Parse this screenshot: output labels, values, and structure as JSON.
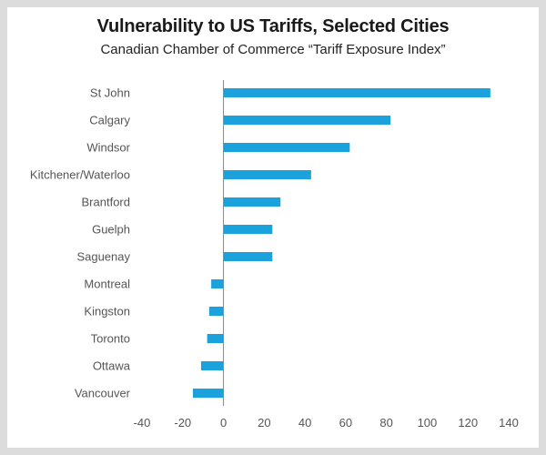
{
  "colors": {
    "bar": "#1ba1dc",
    "axis": "#888888",
    "text": "#555555",
    "frame": "#dcdcdc"
  },
  "chart_data": {
    "type": "bar",
    "orientation": "horizontal",
    "title": "Vulnerability to US Tariffs, Selected Cities",
    "subtitle": "Canadian Chamber of Commerce “Tariff Exposure Index”",
    "xlabel": "",
    "ylabel": "",
    "xlim": [
      -40,
      140
    ],
    "xticks": [
      -40,
      -20,
      0,
      20,
      40,
      60,
      80,
      100,
      120,
      140
    ],
    "grid": false,
    "categories": [
      "St John",
      "Calgary",
      "Windsor",
      "Kitchener/Waterloo",
      "Brantford",
      "Guelph",
      "Saguenay",
      "Montreal",
      "Kingston",
      "Toronto",
      "Ottawa",
      "Vancouver"
    ],
    "values": [
      131,
      82,
      62,
      43,
      28,
      24,
      24,
      -6,
      -7,
      -8,
      -11,
      -15
    ]
  }
}
